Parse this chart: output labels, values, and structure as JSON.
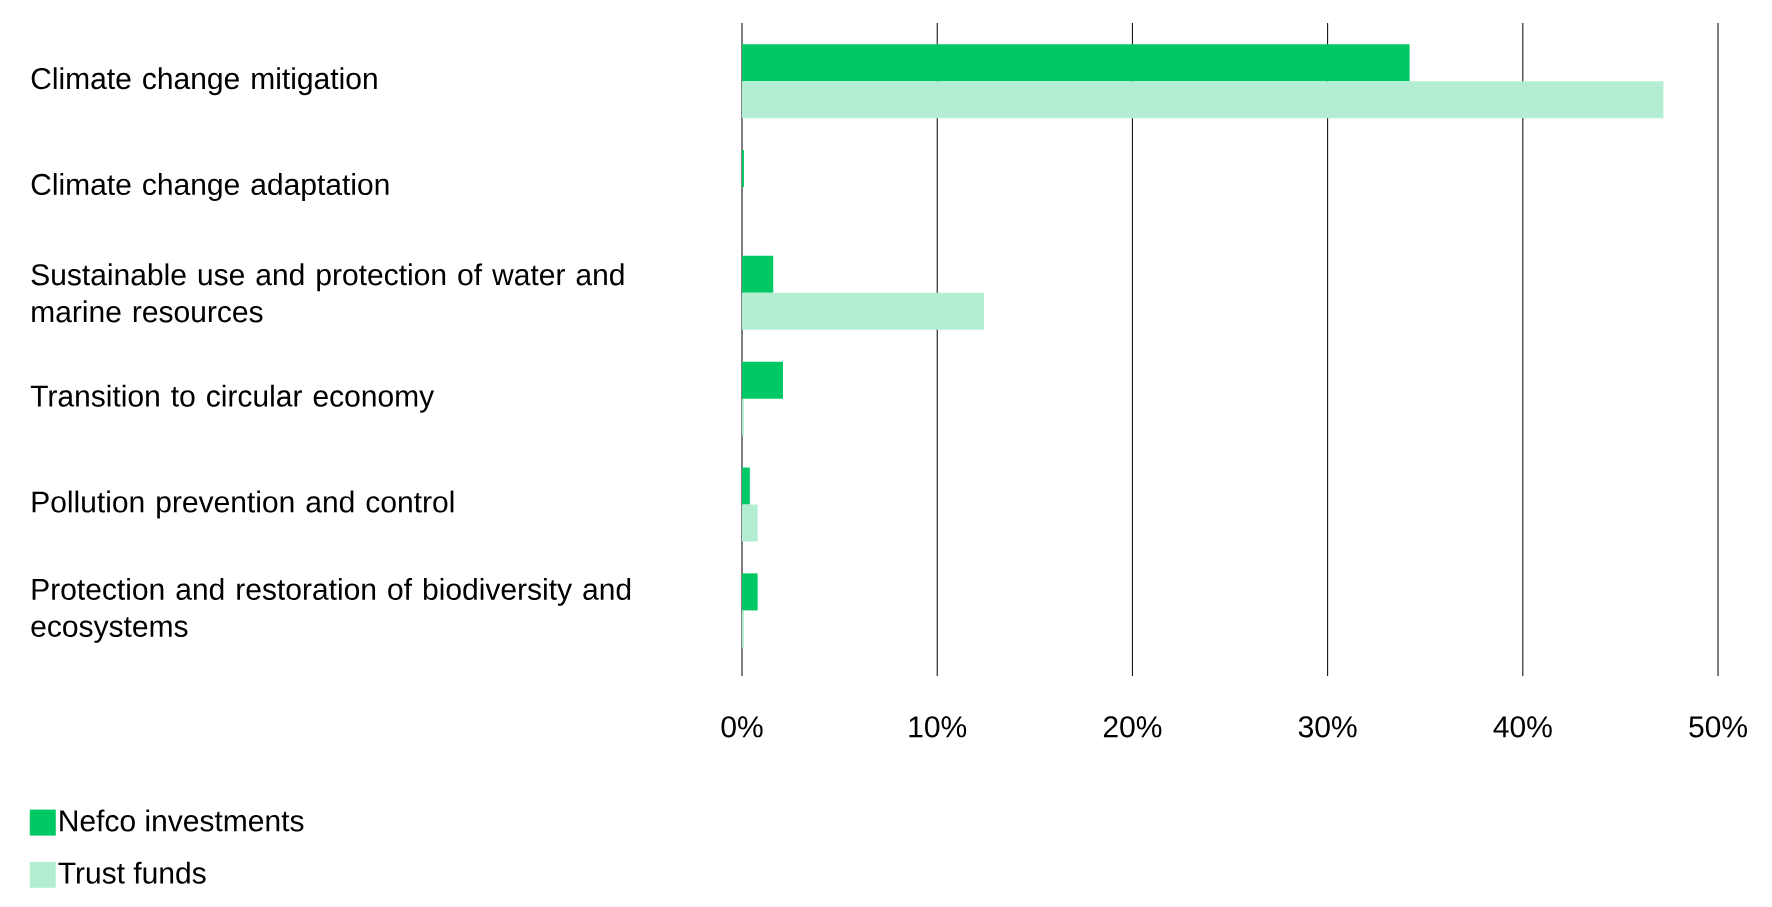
{
  "chart_data": {
    "type": "bar",
    "orientation": "horizontal",
    "categories": [
      "Climate change mitigation",
      "Climate change adaptation",
      "Sustainable use and protection of water and marine resources",
      "Transition to circular economy",
      "Pollution prevention and control",
      "Protection and restoration of biodiversity and ecosystems"
    ],
    "series": [
      {
        "name": "Nefco investments",
        "color": "#00c864",
        "values": [
          34.2,
          0.1,
          1.6,
          2.1,
          0.4,
          0.8
        ]
      },
      {
        "name": "Trust funds",
        "color": "#b3eed3",
        "values": [
          47.2,
          0,
          12.4,
          0.1,
          0.8,
          0.1
        ]
      }
    ],
    "xlim": [
      0,
      50
    ],
    "xticks": [
      {
        "value": 0,
        "label": "0%"
      },
      {
        "value": 10,
        "label": "10%"
      },
      {
        "value": 20,
        "label": "20%"
      },
      {
        "value": 30,
        "label": "30%"
      },
      {
        "value": 40,
        "label": "40%"
      },
      {
        "value": 50,
        "label": "50%"
      }
    ],
    "grid": "x",
    "legend": "bottom left"
  }
}
